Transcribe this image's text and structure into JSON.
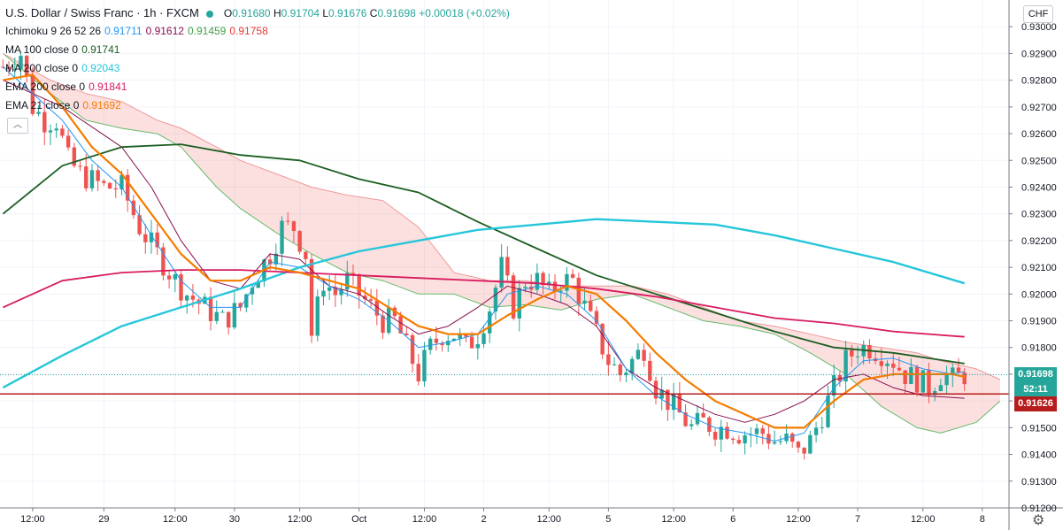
{
  "header": {
    "title": "U.S. Dollar / Swiss Franc · 1h · FXCM",
    "ohlc": {
      "o_label": "O",
      "o": "0.91680",
      "h_label": "H",
      "h": "0.91704",
      "l_label": "L",
      "l": "0.91676",
      "c_label": "C",
      "c": "0.91698",
      "change": "+0.00018 (+0.02%)"
    }
  },
  "indicators": [
    {
      "label": "Ichimoku 9 26 52 26",
      "values": [
        {
          "v": "0.91711",
          "color": "#2196f3"
        },
        {
          "v": "0.91612",
          "color": "#880e4f"
        },
        {
          "v": "0.91459",
          "color": "#43a047"
        },
        {
          "v": "0.91758",
          "color": "#e53935"
        }
      ]
    },
    {
      "label": "MA 100 close 0",
      "values": [
        {
          "v": "0.91741",
          "color": "#1b5e20"
        }
      ]
    },
    {
      "label": "MA 200 close 0",
      "values": [
        {
          "v": "0.92043",
          "color": "#26c6da"
        }
      ]
    },
    {
      "label": "EMA 200 close 0",
      "values": [
        {
          "v": "0.91841",
          "color": "#d81b60"
        }
      ]
    },
    {
      "label": "EMA 21 close 0",
      "values": [
        {
          "v": "0.91692",
          "color": "#f57c00"
        }
      ]
    }
  ],
  "currency_button": "CHF",
  "price_labels": {
    "last": "0.91698",
    "countdown": "52:11",
    "level": "0.91626"
  },
  "colors": {
    "up": "#26a69a",
    "down": "#ef5350",
    "ma100": "#1b5e20",
    "ma200": "#26c6da",
    "ema200": "#d81b60",
    "ema21": "#f57c00",
    "tenkan": "#2196f3",
    "kijun": "#880e4f",
    "level": "#b71c1c"
  },
  "chart_data": {
    "type": "candlestick",
    "symbol": "USD/CHF",
    "timeframe": "1h",
    "ylim": [
      0.912,
      0.931
    ],
    "yticks": [
      "0.93000",
      "0.92900",
      "0.92800",
      "0.92700",
      "0.92600",
      "0.92500",
      "0.92400",
      "0.92300",
      "0.92200",
      "0.92100",
      "0.92000",
      "0.91900",
      "0.91800",
      "0.91700",
      "0.91600",
      "0.91500",
      "0.91400",
      "0.91300",
      "0.91200"
    ],
    "xticks": [
      {
        "label": "12:00",
        "bar": 5
      },
      {
        "label": "29",
        "bar": 17
      },
      {
        "label": "12:00",
        "bar": 29
      },
      {
        "label": "30",
        "bar": 39
      },
      {
        "label": "12:00",
        "bar": 50
      },
      {
        "label": "Oct",
        "bar": 60
      },
      {
        "label": "12:00",
        "bar": 71
      },
      {
        "label": "2",
        "bar": 81
      },
      {
        "label": "12:00",
        "bar": 92
      },
      {
        "label": "5",
        "bar": 102
      },
      {
        "label": "12:00",
        "bar": 113
      },
      {
        "label": "6",
        "bar": 123
      },
      {
        "label": "12:00",
        "bar": 134
      },
      {
        "label": "7",
        "bar": 144
      },
      {
        "label": "12:00",
        "bar": 155
      },
      {
        "label": "8",
        "bar": 165
      }
    ],
    "close_path": [
      [
        0,
        0.9285
      ],
      [
        3,
        0.929
      ],
      [
        5,
        0.927
      ],
      [
        7,
        0.9265
      ],
      [
        9,
        0.9265
      ],
      [
        11,
        0.925
      ],
      [
        13,
        0.9245
      ],
      [
        17,
        0.924
      ],
      [
        20,
        0.924
      ],
      [
        23,
        0.9225
      ],
      [
        26,
        0.9215
      ],
      [
        29,
        0.9205
      ],
      [
        31,
        0.92
      ],
      [
        34,
        0.9195
      ],
      [
        37,
        0.919
      ],
      [
        40,
        0.9195
      ],
      [
        42,
        0.9205
      ],
      [
        45,
        0.9215
      ],
      [
        47,
        0.9225
      ],
      [
        49,
        0.9225
      ],
      [
        51,
        0.9215
      ],
      [
        52,
        0.9185
      ],
      [
        54,
        0.9205
      ],
      [
        56,
        0.92
      ],
      [
        58,
        0.9205
      ],
      [
        60,
        0.92
      ],
      [
        62,
        0.9195
      ],
      [
        64,
        0.919
      ],
      [
        66,
        0.919
      ],
      [
        68,
        0.918
      ],
      [
        70,
        0.917
      ],
      [
        72,
        0.918
      ],
      [
        74,
        0.9185
      ],
      [
        76,
        0.9185
      ],
      [
        78,
        0.918
      ],
      [
        80,
        0.9185
      ],
      [
        82,
        0.9195
      ],
      [
        84,
        0.921
      ],
      [
        86,
        0.9195
      ],
      [
        88,
        0.9205
      ],
      [
        90,
        0.9205
      ],
      [
        92,
        0.92
      ],
      [
        94,
        0.9205
      ],
      [
        96,
        0.9205
      ],
      [
        98,
        0.9195
      ],
      [
        100,
        0.9185
      ],
      [
        102,
        0.9175
      ],
      [
        104,
        0.917
      ],
      [
        106,
        0.9175
      ],
      [
        108,
        0.918
      ],
      [
        110,
        0.9165
      ],
      [
        112,
        0.916
      ],
      [
        114,
        0.9155
      ],
      [
        116,
        0.915
      ],
      [
        118,
        0.9152
      ],
      [
        120,
        0.915
      ],
      [
        122,
        0.915
      ],
      [
        124,
        0.9148
      ],
      [
        126,
        0.9148
      ],
      [
        128,
        0.9148
      ],
      [
        130,
        0.9145
      ],
      [
        132,
        0.9145
      ],
      [
        134,
        0.914
      ],
      [
        136,
        0.9145
      ],
      [
        138,
        0.9155
      ],
      [
        140,
        0.9165
      ],
      [
        142,
        0.9175
      ],
      [
        144,
        0.918
      ],
      [
        146,
        0.918
      ],
      [
        148,
        0.9178
      ],
      [
        150,
        0.9175
      ],
      [
        152,
        0.917
      ],
      [
        154,
        0.9168
      ],
      [
        156,
        0.9165
      ],
      [
        158,
        0.917
      ],
      [
        160,
        0.9168
      ],
      [
        162,
        0.917
      ]
    ],
    "series": [
      {
        "name": "MA 100",
        "points": [
          [
            0,
            0.923
          ],
          [
            10,
            0.9248
          ],
          [
            20,
            0.9255
          ],
          [
            30,
            0.9256
          ],
          [
            40,
            0.9252
          ],
          [
            50,
            0.925
          ],
          [
            60,
            0.9243
          ],
          [
            70,
            0.9238
          ],
          [
            80,
            0.9227
          ],
          [
            90,
            0.9217
          ],
          [
            100,
            0.9207
          ],
          [
            110,
            0.92
          ],
          [
            120,
            0.9193
          ],
          [
            130,
            0.9186
          ],
          [
            140,
            0.918
          ],
          [
            150,
            0.9178
          ],
          [
            162,
            0.9174
          ]
        ]
      },
      {
        "name": "MA 200",
        "points": [
          [
            0,
            0.9165
          ],
          [
            10,
            0.9177
          ],
          [
            20,
            0.9188
          ],
          [
            30,
            0.9195
          ],
          [
            40,
            0.9202
          ],
          [
            50,
            0.921
          ],
          [
            60,
            0.9216
          ],
          [
            70,
            0.922
          ],
          [
            80,
            0.9224
          ],
          [
            90,
            0.9226
          ],
          [
            100,
            0.9228
          ],
          [
            110,
            0.9227
          ],
          [
            120,
            0.9226
          ],
          [
            130,
            0.9222
          ],
          [
            140,
            0.9217
          ],
          [
            150,
            0.9212
          ],
          [
            162,
            0.9204
          ]
        ]
      },
      {
        "name": "EMA 200",
        "points": [
          [
            0,
            0.9195
          ],
          [
            10,
            0.9205
          ],
          [
            20,
            0.9208
          ],
          [
            30,
            0.9209
          ],
          [
            40,
            0.9209
          ],
          [
            50,
            0.9208
          ],
          [
            60,
            0.9207
          ],
          [
            70,
            0.9206
          ],
          [
            80,
            0.9205
          ],
          [
            90,
            0.9204
          ],
          [
            100,
            0.9202
          ],
          [
            110,
            0.9199
          ],
          [
            120,
            0.9195
          ],
          [
            130,
            0.9191
          ],
          [
            140,
            0.9189
          ],
          [
            150,
            0.9186
          ],
          [
            162,
            0.9184
          ]
        ]
      },
      {
        "name": "EMA 21",
        "points": [
          [
            0,
            0.928
          ],
          [
            5,
            0.9282
          ],
          [
            10,
            0.927
          ],
          [
            15,
            0.9255
          ],
          [
            20,
            0.9245
          ],
          [
            25,
            0.923
          ],
          [
            30,
            0.9215
          ],
          [
            35,
            0.9205
          ],
          [
            40,
            0.9205
          ],
          [
            45,
            0.921
          ],
          [
            50,
            0.9208
          ],
          [
            55,
            0.9205
          ],
          [
            60,
            0.9202
          ],
          [
            65,
            0.9195
          ],
          [
            70,
            0.9188
          ],
          [
            75,
            0.9185
          ],
          [
            80,
            0.9185
          ],
          [
            85,
            0.9192
          ],
          [
            90,
            0.9198
          ],
          [
            95,
            0.9203
          ],
          [
            100,
            0.92
          ],
          [
            105,
            0.919
          ],
          [
            110,
            0.9178
          ],
          [
            115,
            0.9168
          ],
          [
            120,
            0.916
          ],
          [
            125,
            0.9155
          ],
          [
            130,
            0.915
          ],
          [
            135,
            0.915
          ],
          [
            140,
            0.916
          ],
          [
            145,
            0.9168
          ],
          [
            150,
            0.917
          ],
          [
            155,
            0.917
          ],
          [
            160,
            0.917
          ],
          [
            162,
            0.9169
          ]
        ]
      },
      {
        "name": "Tenkan",
        "points": [
          [
            0,
            0.9285
          ],
          [
            10,
            0.9265
          ],
          [
            15,
            0.925
          ],
          [
            20,
            0.924
          ],
          [
            25,
            0.9222
          ],
          [
            30,
            0.9205
          ],
          [
            35,
            0.9195
          ],
          [
            40,
            0.9195
          ],
          [
            45,
            0.9212
          ],
          [
            50,
            0.921
          ],
          [
            55,
            0.9203
          ],
          [
            60,
            0.9198
          ],
          [
            65,
            0.919
          ],
          [
            70,
            0.918
          ],
          [
            75,
            0.9182
          ],
          [
            80,
            0.9185
          ],
          [
            85,
            0.92
          ],
          [
            90,
            0.9203
          ],
          [
            95,
            0.92
          ],
          [
            100,
            0.919
          ],
          [
            105,
            0.9172
          ],
          [
            110,
            0.9162
          ],
          [
            115,
            0.9155
          ],
          [
            120,
            0.915
          ],
          [
            125,
            0.9148
          ],
          [
            130,
            0.9145
          ],
          [
            135,
            0.9148
          ],
          [
            140,
            0.9165
          ],
          [
            145,
            0.9175
          ],
          [
            150,
            0.9176
          ],
          [
            155,
            0.9172
          ],
          [
            160,
            0.917
          ],
          [
            162,
            0.9171
          ]
        ]
      },
      {
        "name": "Kijun",
        "points": [
          [
            0,
            0.928
          ],
          [
            10,
            0.927
          ],
          [
            20,
            0.9255
          ],
          [
            25,
            0.924
          ],
          [
            30,
            0.922
          ],
          [
            35,
            0.9205
          ],
          [
            40,
            0.9202
          ],
          [
            45,
            0.9215
          ],
          [
            50,
            0.9213
          ],
          [
            55,
            0.9203
          ],
          [
            60,
            0.92
          ],
          [
            65,
            0.9192
          ],
          [
            70,
            0.9185
          ],
          [
            75,
            0.9188
          ],
          [
            80,
            0.9195
          ],
          [
            85,
            0.9203
          ],
          [
            90,
            0.92
          ],
          [
            95,
            0.9196
          ],
          [
            100,
            0.9188
          ],
          [
            105,
            0.9172
          ],
          [
            110,
            0.9165
          ],
          [
            115,
            0.916
          ],
          [
            120,
            0.9155
          ],
          [
            125,
            0.9152
          ],
          [
            130,
            0.9155
          ],
          [
            135,
            0.916
          ],
          [
            140,
            0.9168
          ],
          [
            145,
            0.917
          ],
          [
            150,
            0.9165
          ],
          [
            155,
            0.9162
          ],
          [
            162,
            0.9161
          ]
        ]
      },
      {
        "name": "Span A",
        "points": [
          [
            0,
            0.929
          ],
          [
            8,
            0.9275
          ],
          [
            14,
            0.9265
          ],
          [
            20,
            0.9262
          ],
          [
            26,
            0.926
          ],
          [
            30,
            0.9255
          ],
          [
            36,
            0.924
          ],
          [
            40,
            0.9232
          ],
          [
            46,
            0.9223
          ],
          [
            52,
            0.9215
          ],
          [
            58,
            0.9208
          ],
          [
            64,
            0.9205
          ],
          [
            70,
            0.92
          ],
          [
            76,
            0.92
          ],
          [
            82,
            0.9195
          ],
          [
            88,
            0.9196
          ],
          [
            94,
            0.9194
          ],
          [
            100,
            0.9198
          ],
          [
            106,
            0.92
          ],
          [
            112,
            0.9195
          ],
          [
            118,
            0.919
          ],
          [
            124,
            0.9188
          ],
          [
            130,
            0.9185
          ],
          [
            136,
            0.9178
          ],
          [
            142,
            0.917
          ],
          [
            148,
            0.9158
          ],
          [
            154,
            0.915
          ],
          [
            158,
            0.9148
          ],
          [
            164,
            0.9152
          ],
          [
            168,
            0.916
          ]
        ]
      },
      {
        "name": "Span B",
        "points": [
          [
            0,
            0.929
          ],
          [
            8,
            0.928
          ],
          [
            14,
            0.9275
          ],
          [
            20,
            0.9272
          ],
          [
            26,
            0.9265
          ],
          [
            30,
            0.9262
          ],
          [
            36,
            0.9255
          ],
          [
            40,
            0.925
          ],
          [
            46,
            0.9245
          ],
          [
            52,
            0.924
          ],
          [
            58,
            0.9237
          ],
          [
            64,
            0.9235
          ],
          [
            70,
            0.9225
          ],
          [
            76,
            0.9208
          ],
          [
            82,
            0.9205
          ],
          [
            88,
            0.9205
          ],
          [
            94,
            0.9203
          ],
          [
            100,
            0.9203
          ],
          [
            106,
            0.9203
          ],
          [
            112,
            0.92
          ],
          [
            118,
            0.9195
          ],
          [
            124,
            0.919
          ],
          [
            130,
            0.9188
          ],
          [
            136,
            0.9185
          ],
          [
            142,
            0.9182
          ],
          [
            148,
            0.918
          ],
          [
            154,
            0.9178
          ],
          [
            158,
            0.9175
          ],
          [
            164,
            0.9172
          ],
          [
            168,
            0.9168
          ]
        ]
      }
    ],
    "levels": [
      {
        "name": "support",
        "value": 0.91626
      },
      {
        "name": "last",
        "value": 0.91698
      }
    ]
  }
}
